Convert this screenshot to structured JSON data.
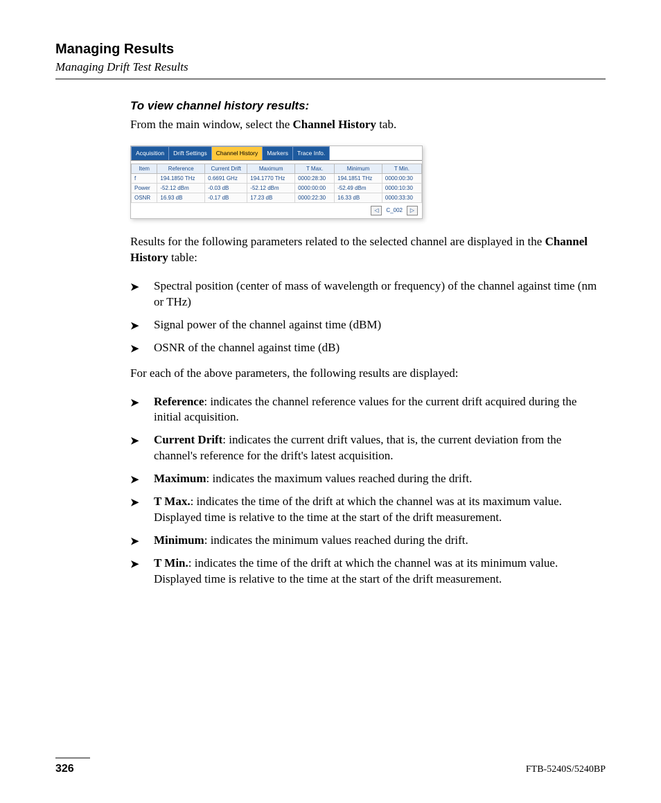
{
  "header": {
    "chapter": "Managing Results",
    "section": "Managing Drift Test Results"
  },
  "procedure_title": "To view channel history results:",
  "intro_pre": "From the main window, select the ",
  "intro_bold": "Channel History",
  "intro_post": " tab.",
  "screenshot": {
    "tabs": [
      {
        "label": "Acquisition",
        "active": false
      },
      {
        "label": "Drift Settings",
        "active": false
      },
      {
        "label": "Channel History",
        "active": true
      },
      {
        "label": "Markers",
        "active": false
      },
      {
        "label": "Trace Info.",
        "active": false
      }
    ],
    "tab_active_bg": "#ffc83c",
    "tab_bg": "#1e5a9e",
    "columns": [
      "Item",
      "Reference",
      "Current Drift",
      "Maximum",
      "T Max.",
      "Minimum",
      "T Min."
    ],
    "rows": [
      [
        "f",
        "194.1850 THz",
        "0.6691 GHz",
        "194.1770 THz",
        "0000:28:30",
        "194.1851 THz",
        "0000:00:30"
      ],
      [
        "Power",
        "-52.12 dBm",
        "-0.03 dB",
        "-52.12 dBm",
        "0000:00:00",
        "-52.49 dBm",
        "0000:10:30"
      ],
      [
        "OSNR",
        "16.93 dB",
        "-0.17 dB",
        "17.23 dB",
        "0000:22:30",
        "16.33 dB",
        "0000:33:30"
      ]
    ],
    "nav_label": "C_002"
  },
  "para2_pre": "Results for the following parameters related to the selected channel are displayed in the ",
  "para2_bold": "Channel History",
  "para2_post": " table:",
  "param_bullets": [
    "Spectral position (center of mass of wavelength or frequency) of the channel against time (nm or THz)",
    "Signal power of the channel against time (dBM)",
    "OSNR of the channel against time (dB)"
  ],
  "para3": "For each of the above parameters, the following results are displayed:",
  "def_bullets": [
    {
      "term": "Reference",
      "def": ": indicates the channel reference values for the current drift acquired during the initial acquisition."
    },
    {
      "term": "Current Drift",
      "def": ": indicates the current drift values, that is, the current deviation from the channel's reference for the drift's latest acquisition."
    },
    {
      "term": "Maximum",
      "def": ": indicates the maximum values reached during the drift."
    },
    {
      "term": "T Max.",
      "def": ": indicates the time of the drift at which the channel was at its maximum value. Displayed time is relative to the time at the start of the drift measurement."
    },
    {
      "term": "Minimum",
      "def": ": indicates the minimum values reached during the drift."
    },
    {
      "term": "T Min.",
      "def": ": indicates the time of the drift at which the channel was at its minimum value. Displayed time is relative to the time at the start of the drift measurement."
    }
  ],
  "footer": {
    "page_number": "326",
    "doc_id": "FTB-5240S/5240BP"
  }
}
